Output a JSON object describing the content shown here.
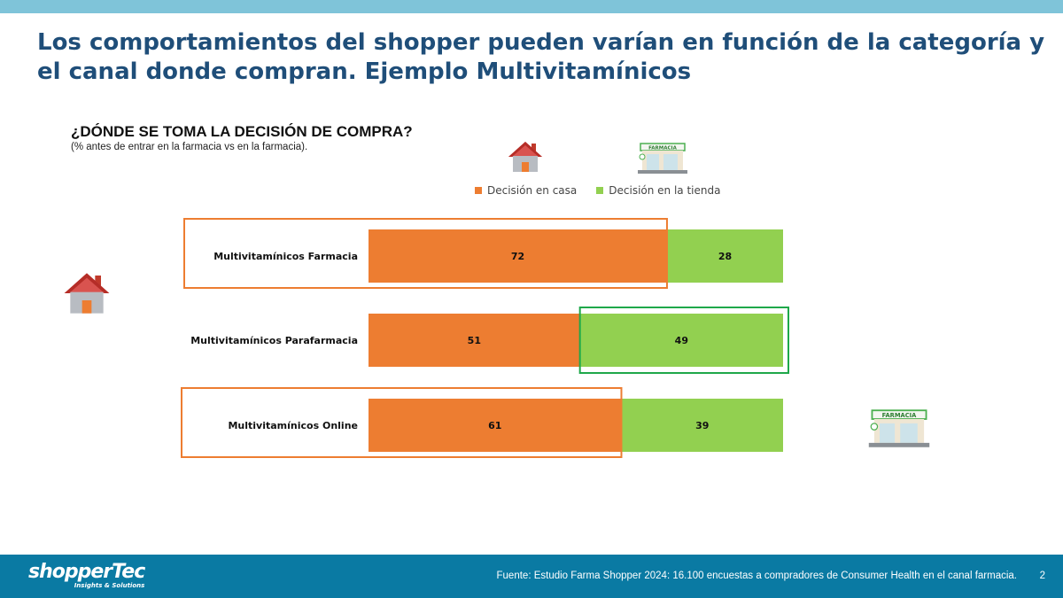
{
  "slide": {
    "title": "Los comportamientos del shopper pueden varían en función de la categoría y el canal donde compran. Ejemplo Multivitamínicos",
    "question": "¿DÓNDE SE TOMA LA DECISIÓN DE COMPRA?",
    "subtitle": "(% antes de entrar en la farmacia vs en la farmacia).",
    "footer": {
      "logo_main": "shopperTec",
      "logo_sub": "Insights & Solutions",
      "source": "Fuente: Estudio Farma Shopper 2024: 16.100 encuestas a compradores de Consumer Health en el canal farmacia.",
      "page": "2"
    },
    "icons": {
      "home": "house-icon",
      "store": "pharmacy-store-icon",
      "store_sign": "FARMACIA"
    }
  },
  "chart_data": {
    "type": "bar",
    "orientation": "horizontal",
    "stacked": true,
    "categories": [
      "Multivitamínicos Farmacia",
      "Multivitamínicos Parafarmacia",
      "Multivitamínicos Online"
    ],
    "series": [
      {
        "name": "Decisión en casa",
        "values": [
          72,
          51,
          61
        ],
        "color": "#ed7d31"
      },
      {
        "name": "Decisión en la tienda",
        "values": [
          28,
          49,
          39
        ],
        "color": "#92d050"
      }
    ],
    "xlim": [
      0,
      100
    ],
    "grid": false,
    "legend": "top",
    "highlight_colors": {
      "home": "#ed7d31",
      "store": "#1fa84a"
    }
  }
}
